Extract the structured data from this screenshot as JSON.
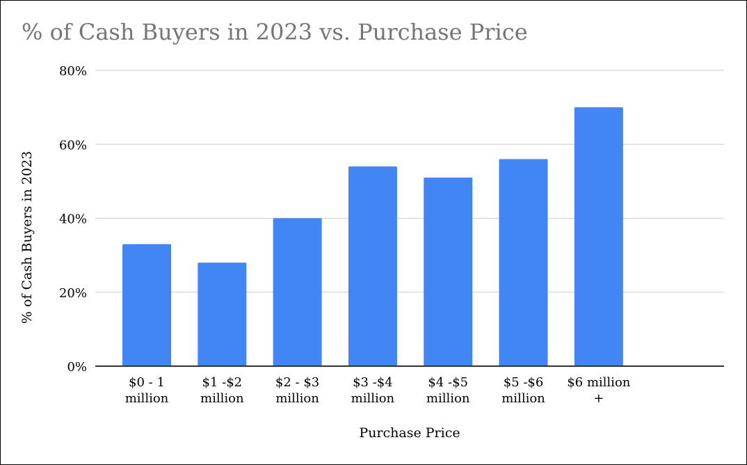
{
  "chart_data": {
    "type": "bar",
    "title": "% of Cash Buyers in 2023 vs. Purchase Price",
    "xlabel": "Purchase Price",
    "ylabel": "% of Cash Buyers in 2023",
    "categories": [
      [
        "$0 - 1",
        "million"
      ],
      [
        "$1 -$2",
        "million"
      ],
      [
        "$2 - $3",
        "million"
      ],
      [
        "$3 -$4",
        "million"
      ],
      [
        "$4 -$5",
        "million"
      ],
      [
        "$5 -$6",
        "million"
      ],
      [
        "$6 million",
        "+"
      ]
    ],
    "series": [
      {
        "values": [
          33,
          28,
          40,
          54,
          51,
          56,
          70
        ]
      }
    ],
    "ylim": [
      0,
      80
    ],
    "yticks": [
      0,
      20,
      40,
      60,
      80
    ],
    "ytick_labels": [
      "0%",
      "20%",
      "40%",
      "60%",
      "80%"
    ],
    "grid": true,
    "legend": "none",
    "colors": {
      "bar": "#4285f4",
      "grid": "#cccccc",
      "axis": "#333333"
    }
  }
}
